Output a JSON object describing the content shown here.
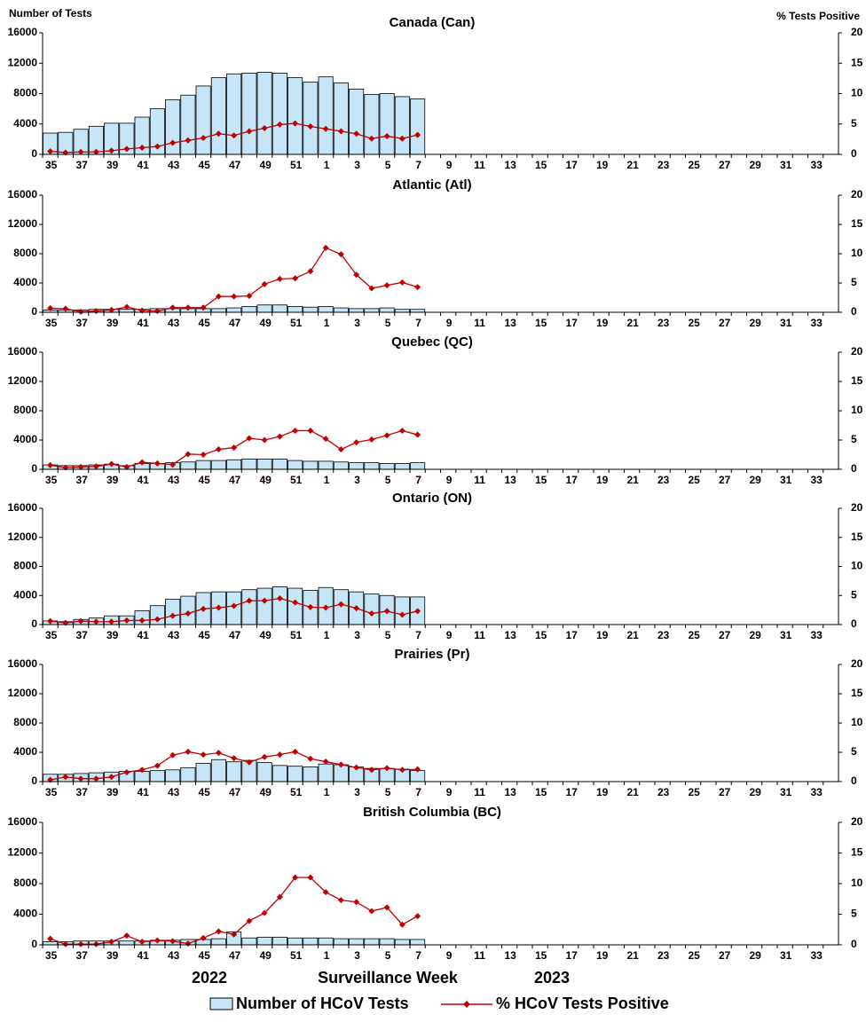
{
  "chart_data": [
    {
      "type": "bar-line",
      "title": "Canada (Can)",
      "ylabel": "Number of Tests",
      "y2label": "% Tests Positive",
      "categories": [
        "35",
        null,
        "37",
        null,
        "39",
        null,
        "41",
        null,
        "43",
        null,
        "45",
        null,
        "47",
        null,
        "49",
        null,
        "51",
        null,
        "1",
        null,
        "3",
        null,
        "5",
        null,
        "7",
        null,
        "9",
        null,
        "11",
        null,
        "13",
        null,
        "15",
        null,
        "17",
        null,
        "19",
        null,
        "21",
        null,
        "23",
        null,
        "25",
        null,
        "27",
        null,
        "29",
        null,
        "31",
        null,
        "33",
        null
      ],
      "ylim": [
        0,
        16000
      ],
      "yticks": [
        0,
        4000,
        8000,
        12000,
        16000
      ],
      "y2lim": [
        0,
        20
      ],
      "y2ticks": [
        0,
        5,
        10,
        15,
        20
      ],
      "series": [
        {
          "name": "Number of HCoV Tests",
          "type": "bar",
          "color": "#c6e6f8",
          "values": [
            2800,
            2900,
            3300,
            3700,
            4100,
            4100,
            4900,
            6000,
            7200,
            7800,
            9000,
            10100,
            10600,
            10700,
            10800,
            10700,
            10100,
            9500,
            10200,
            9400,
            8600,
            7900,
            8000,
            7600,
            7300,
            null,
            null,
            null,
            null,
            null,
            null,
            null,
            null,
            null,
            null,
            null,
            null,
            null,
            null,
            null,
            null,
            null,
            null,
            null,
            null,
            null,
            null,
            null,
            null,
            null,
            null,
            null
          ]
        },
        {
          "name": "% HCoV Tests Positive",
          "type": "line",
          "axis": "y2",
          "color": "#c00000",
          "values": [
            0.5,
            0.3,
            0.4,
            0.4,
            0.6,
            0.9,
            1.1,
            1.3,
            1.9,
            2.3,
            2.7,
            3.4,
            3.1,
            3.8,
            4.3,
            4.9,
            5.1,
            4.6,
            4.2,
            3.8,
            3.4,
            2.6,
            3.0,
            2.6,
            3.2,
            null,
            null,
            null,
            null,
            null,
            null,
            null,
            null,
            null,
            null,
            null,
            null,
            null,
            null,
            null,
            null,
            null,
            null,
            null,
            null,
            null,
            null,
            null,
            null,
            null,
            null,
            null
          ]
        }
      ]
    },
    {
      "type": "bar-line",
      "title": "Atlantic (Atl)",
      "categories": [
        "35",
        null,
        "37",
        null,
        "39",
        null,
        "41",
        null,
        "43",
        null,
        "45",
        null,
        "47",
        null,
        "49",
        null,
        "51",
        null,
        "1",
        null,
        "3",
        null,
        "5",
        null,
        "7",
        null,
        "9",
        null,
        "11",
        null,
        "13",
        null,
        "15",
        null,
        "17",
        null,
        "19",
        null,
        "21",
        null,
        "23",
        null,
        "25",
        null,
        "27",
        null,
        "29",
        null,
        "31",
        null,
        "33",
        null
      ],
      "ylim": [
        0,
        16000
      ],
      "yticks": [
        0,
        4000,
        8000,
        12000,
        16000
      ],
      "y2lim": [
        0,
        20
      ],
      "y2ticks": [
        0,
        5,
        10,
        15,
        20
      ],
      "series": [
        {
          "name": "Number of HCoV Tests",
          "type": "bar",
          "color": "#c6e6f8",
          "values": [
            300,
            300,
            300,
            400,
            400,
            400,
            400,
            500,
            500,
            500,
            500,
            500,
            600,
            800,
            1000,
            1000,
            800,
            700,
            800,
            600,
            500,
            500,
            600,
            400,
            400,
            null,
            null,
            null,
            null,
            null,
            null,
            null,
            null,
            null,
            null,
            null,
            null,
            null,
            null,
            null,
            null,
            null,
            null,
            null,
            null,
            null,
            null,
            null,
            null,
            null,
            null,
            null
          ]
        },
        {
          "name": "% HCoV Tests Positive",
          "type": "line",
          "axis": "y2",
          "color": "#c00000",
          "values": [
            0.7,
            0.6,
            0.1,
            0.2,
            0.4,
            0.9,
            0.3,
            0.2,
            0.8,
            0.8,
            0.8,
            2.7,
            2.7,
            2.8,
            4.8,
            5.7,
            5.8,
            7.0,
            11.0,
            9.9,
            6.4,
            4.1,
            4.6,
            5.1,
            4.3,
            null,
            null,
            null,
            null,
            null,
            null,
            null,
            null,
            null,
            null,
            null,
            null,
            null,
            null,
            null,
            null,
            null,
            null,
            null,
            null,
            null,
            null,
            null,
            null,
            null,
            null,
            null
          ]
        }
      ]
    },
    {
      "type": "bar-line",
      "title": "Quebec (QC)",
      "categories": [
        "35",
        null,
        "37",
        null,
        "39",
        null,
        "41",
        null,
        "43",
        null,
        "45",
        null,
        "47",
        null,
        "49",
        null,
        "51",
        null,
        "1",
        null,
        "3",
        null,
        "5",
        null,
        "7",
        null,
        "9",
        null,
        "11",
        null,
        "13",
        null,
        "15",
        null,
        "17",
        null,
        "19",
        null,
        "21",
        null,
        "23",
        null,
        "25",
        null,
        "27",
        null,
        "29",
        null,
        "31",
        null,
        "33",
        null
      ],
      "ylim": [
        0,
        16000
      ],
      "yticks": [
        0,
        4000,
        8000,
        12000,
        16000
      ],
      "y2lim": [
        0,
        20
      ],
      "y2ticks": [
        0,
        5,
        10,
        15,
        20
      ],
      "series": [
        {
          "name": "Number of HCoV Tests",
          "type": "bar",
          "color": "#c6e6f8",
          "values": [
            600,
            500,
            500,
            600,
            700,
            500,
            800,
            800,
            900,
            1000,
            1200,
            1200,
            1300,
            1400,
            1400,
            1400,
            1200,
            1100,
            1100,
            1000,
            900,
            900,
            800,
            800,
            900,
            null,
            null,
            null,
            null,
            null,
            null,
            null,
            null,
            null,
            null,
            null,
            null,
            null,
            null,
            null,
            null,
            null,
            null,
            null,
            null,
            null,
            null,
            null,
            null,
            null,
            null,
            null
          ]
        },
        {
          "name": "% HCoV Tests Positive",
          "type": "line",
          "axis": "y2",
          "color": "#c00000",
          "values": [
            0.7,
            0.3,
            0.4,
            0.5,
            0.9,
            0.4,
            1.2,
            1.0,
            0.8,
            2.6,
            2.5,
            3.4,
            3.7,
            5.3,
            5.0,
            5.6,
            6.6,
            6.6,
            5.2,
            3.4,
            4.6,
            5.1,
            5.8,
            6.6,
            5.9,
            null,
            null,
            null,
            null,
            null,
            null,
            null,
            null,
            null,
            null,
            null,
            null,
            null,
            null,
            null,
            null,
            null,
            null,
            null,
            null,
            null,
            null,
            null,
            null,
            null,
            null,
            null
          ]
        }
      ]
    },
    {
      "type": "bar-line",
      "title": "Ontario (ON)",
      "categories": [
        "35",
        null,
        "37",
        null,
        "39",
        null,
        "41",
        null,
        "43",
        null,
        "45",
        null,
        "47",
        null,
        "49",
        null,
        "51",
        null,
        "1",
        null,
        "3",
        null,
        "5",
        null,
        "7",
        null,
        "9",
        null,
        "11",
        null,
        "13",
        null,
        "15",
        null,
        "17",
        null,
        "19",
        null,
        "21",
        null,
        "23",
        null,
        "25",
        null,
        "27",
        null,
        "29",
        null,
        "31",
        null,
        "33",
        null
      ],
      "ylim": [
        0,
        16000
      ],
      "yticks": [
        0,
        4000,
        8000,
        12000,
        16000
      ],
      "y2lim": [
        0,
        20
      ],
      "y2ticks": [
        0,
        5,
        10,
        15,
        20
      ],
      "series": [
        {
          "name": "Number of HCoV Tests",
          "type": "bar",
          "color": "#c6e6f8",
          "values": [
            500,
            400,
            700,
            900,
            1200,
            1200,
            1900,
            2600,
            3500,
            3900,
            4400,
            4500,
            4500,
            4800,
            5000,
            5200,
            5000,
            4700,
            5100,
            4800,
            4500,
            4200,
            4000,
            3800,
            3800,
            null,
            null,
            null,
            null,
            null,
            null,
            null,
            null,
            null,
            null,
            null,
            null,
            null,
            null,
            null,
            null,
            null,
            null,
            null,
            null,
            null,
            null,
            null,
            null,
            null,
            null,
            null
          ]
        },
        {
          "name": "% HCoV Tests Positive",
          "type": "line",
          "axis": "y2",
          "color": "#c00000",
          "values": [
            0.6,
            0.3,
            0.6,
            0.5,
            0.5,
            0.7,
            0.7,
            0.9,
            1.5,
            1.9,
            2.7,
            2.9,
            3.2,
            4.1,
            4.1,
            4.5,
            3.8,
            3.0,
            2.9,
            3.5,
            2.8,
            1.9,
            2.3,
            1.7,
            2.3,
            null,
            null,
            null,
            null,
            null,
            null,
            null,
            null,
            null,
            null,
            null,
            null,
            null,
            null,
            null,
            null,
            null,
            null,
            null,
            null,
            null,
            null,
            null,
            null,
            null,
            null,
            null
          ]
        }
      ]
    },
    {
      "type": "bar-line",
      "title": "Prairies (Pr)",
      "categories": [
        "35",
        null,
        "37",
        null,
        "39",
        null,
        "41",
        null,
        "43",
        null,
        "45",
        null,
        "47",
        null,
        "49",
        null,
        "51",
        null,
        "1",
        null,
        "3",
        null,
        "5",
        null,
        "7",
        null,
        "9",
        null,
        "11",
        null,
        "13",
        null,
        "15",
        null,
        "17",
        null,
        "19",
        null,
        "21",
        null,
        "23",
        null,
        "25",
        null,
        "27",
        null,
        "29",
        null,
        "31",
        null,
        "33",
        null
      ],
      "ylim": [
        0,
        16000
      ],
      "yticks": [
        0,
        4000,
        8000,
        12000,
        16000
      ],
      "y2lim": [
        0,
        20
      ],
      "y2ticks": [
        0,
        5,
        10,
        15,
        20
      ],
      "series": [
        {
          "name": "Number of HCoV Tests",
          "type": "bar",
          "color": "#c6e6f8",
          "values": [
            1000,
            1000,
            1100,
            1200,
            1300,
            1400,
            1400,
            1500,
            1600,
            1900,
            2500,
            3000,
            2700,
            2900,
            2600,
            2200,
            2100,
            2000,
            2400,
            2300,
            2000,
            1800,
            1800,
            1700,
            1500,
            null,
            null,
            null,
            null,
            null,
            null,
            null,
            null,
            null,
            null,
            null,
            null,
            null,
            null,
            null,
            null,
            null,
            null,
            null,
            null,
            null,
            null,
            null,
            null,
            null,
            null,
            null
          ]
        },
        {
          "name": "% HCoV Tests Positive",
          "type": "line",
          "axis": "y2",
          "color": "#c00000",
          "values": [
            0.3,
            0.8,
            0.5,
            0.5,
            0.8,
            1.6,
            2.0,
            2.7,
            4.5,
            5.1,
            4.6,
            4.9,
            4.0,
            3.3,
            4.2,
            4.6,
            5.1,
            3.9,
            3.4,
            2.9,
            2.4,
            2.0,
            2.3,
            2.0,
            2.1,
            null,
            null,
            null,
            null,
            null,
            null,
            null,
            null,
            null,
            null,
            null,
            null,
            null,
            null,
            null,
            null,
            null,
            null,
            null,
            null,
            null,
            null,
            null,
            null,
            null,
            null,
            null
          ]
        }
      ]
    },
    {
      "type": "bar-line",
      "title": "British Columbia (BC)",
      "xlabel": "Surveillance Week",
      "annotations": [
        "2022",
        "2023"
      ],
      "categories": [
        "35",
        null,
        "37",
        null,
        "39",
        null,
        "41",
        null,
        "43",
        null,
        "45",
        null,
        "47",
        null,
        "49",
        null,
        "51",
        null,
        "1",
        null,
        "3",
        null,
        "5",
        null,
        "7",
        null,
        "9",
        null,
        "11",
        null,
        "13",
        null,
        "15",
        null,
        "17",
        null,
        "19",
        null,
        "21",
        null,
        "23",
        null,
        "25",
        null,
        "27",
        null,
        "29",
        null,
        "31",
        null,
        "33",
        null
      ],
      "ylim": [
        0,
        16000
      ],
      "yticks": [
        0,
        4000,
        8000,
        12000,
        16000
      ],
      "y2lim": [
        0,
        20
      ],
      "y2ticks": [
        0,
        5,
        10,
        15,
        20
      ],
      "series": [
        {
          "name": "Number of HCoV Tests",
          "type": "bar",
          "color": "#c6e6f8",
          "values": [
            400,
            400,
            500,
            500,
            500,
            500,
            500,
            600,
            600,
            700,
            700,
            800,
            1700,
            900,
            1000,
            1000,
            900,
            900,
            900,
            800,
            800,
            800,
            800,
            700,
            700,
            null,
            null,
            null,
            null,
            null,
            null,
            null,
            null,
            null,
            null,
            null,
            null,
            null,
            null,
            null,
            null,
            null,
            null,
            null,
            null,
            null,
            null,
            null,
            null,
            null,
            null,
            null
          ]
        },
        {
          "name": "% HCoV Tests Positive",
          "type": "line",
          "axis": "y2",
          "color": "#c00000",
          "values": [
            1.0,
            0.1,
            0.1,
            0.1,
            0.5,
            1.5,
            0.5,
            0.7,
            0.6,
            0.2,
            1.1,
            2.2,
            1.7,
            3.9,
            5.2,
            7.8,
            11.0,
            11.0,
            8.6,
            7.3,
            7.0,
            5.5,
            6.1,
            3.3,
            4.7,
            null,
            null,
            null,
            null,
            null,
            null,
            null,
            null,
            null,
            null,
            null,
            null,
            null,
            null,
            null,
            null,
            null,
            null,
            null,
            null,
            null,
            null,
            null,
            null,
            null,
            null,
            null
          ]
        }
      ]
    }
  ]
}
